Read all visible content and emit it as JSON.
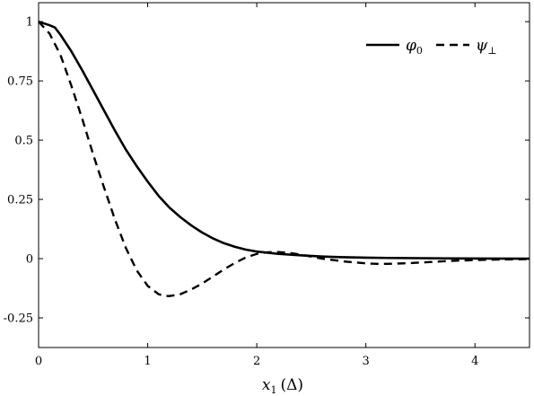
{
  "chart_data": {
    "type": "line",
    "xlabel_base": "x",
    "xlabel_sub": "1",
    "xlabel_unit": "(Δ)",
    "ylabel": "",
    "xlim": [
      0,
      4.5
    ],
    "ylim": [
      -0.375,
      1.08
    ],
    "xticks": [
      0,
      1,
      2,
      3,
      4
    ],
    "xtick_labels": [
      "0",
      "1",
      "2",
      "3",
      "4"
    ],
    "yticks": [
      -0.25,
      0,
      0.25,
      0.5,
      0.75,
      1
    ],
    "ytick_labels": [
      "-0.25",
      "0",
      "0.25",
      "0.5",
      "0.75",
      "1"
    ],
    "grid": false,
    "legend_position": "top-right",
    "series": [
      {
        "name": "φ0",
        "legend_base": "φ",
        "legend_sub": "0",
        "style": "solid",
        "color": "#000000",
        "x": [
          0,
          0.1,
          0.15,
          0.2,
          0.3,
          0.4,
          0.5,
          0.6,
          0.7,
          0.8,
          0.9,
          1.0,
          1.1,
          1.2,
          1.3,
          1.4,
          1.5,
          1.6,
          1.7,
          1.8,
          1.9,
          2.0,
          2.1,
          2.2,
          2.4,
          2.6,
          2.8,
          3.0,
          3.2,
          3.5,
          3.8,
          4.1,
          4.5
        ],
        "y": [
          1.0,
          0.985,
          0.975,
          0.945,
          0.875,
          0.795,
          0.71,
          0.625,
          0.54,
          0.46,
          0.39,
          0.325,
          0.265,
          0.215,
          0.175,
          0.14,
          0.11,
          0.085,
          0.065,
          0.05,
          0.038,
          0.03,
          0.025,
          0.02,
          0.014,
          0.009,
          0.006,
          0.004,
          0.003,
          0.002,
          0.001,
          0.0005,
          0.0
        ]
      },
      {
        "name": "ψ⊥",
        "legend_base": "ψ",
        "legend_sub": "⊥",
        "style": "dashed",
        "color": "#000000",
        "x": [
          0,
          0.1,
          0.2,
          0.3,
          0.4,
          0.5,
          0.6,
          0.7,
          0.8,
          0.9,
          1.0,
          1.1,
          1.15,
          1.2,
          1.3,
          1.4,
          1.5,
          1.6,
          1.7,
          1.8,
          1.9,
          2.0,
          2.1,
          2.2,
          2.3,
          2.4,
          2.6,
          2.8,
          3.0,
          3.1,
          3.2,
          3.4,
          3.6,
          3.8,
          4.0,
          4.2,
          4.5
        ],
        "y": [
          1.0,
          0.95,
          0.86,
          0.73,
          0.59,
          0.44,
          0.3,
          0.165,
          0.045,
          -0.05,
          -0.115,
          -0.15,
          -0.157,
          -0.158,
          -0.15,
          -0.13,
          -0.105,
          -0.075,
          -0.045,
          -0.018,
          0.005,
          0.02,
          0.027,
          0.028,
          0.024,
          0.017,
          0.0,
          -0.012,
          -0.02,
          -0.022,
          -0.022,
          -0.019,
          -0.014,
          -0.009,
          -0.006,
          -0.004,
          -0.002
        ]
      }
    ]
  }
}
